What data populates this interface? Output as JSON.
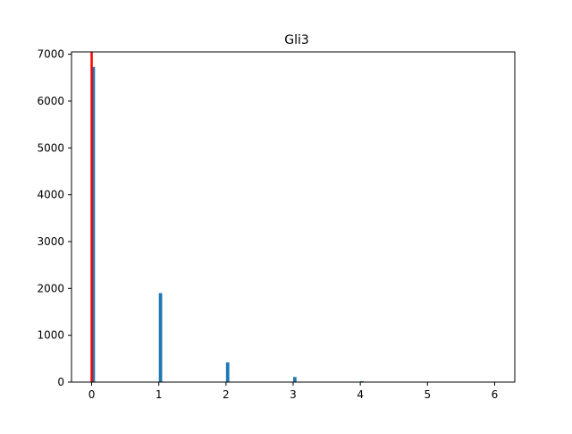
{
  "chart_data": {
    "type": "bar",
    "title": "Gli3",
    "xlabel": "",
    "ylabel": "",
    "xlim": [
      -0.3,
      6.3
    ],
    "ylim": [
      0,
      7050
    ],
    "x_ticks": [
      0,
      1,
      2,
      3,
      4,
      5,
      6
    ],
    "y_ticks": [
      0,
      1000,
      2000,
      3000,
      4000,
      5000,
      6000,
      7000
    ],
    "grid": false,
    "legend": "none",
    "bar_color": "#1f77b4",
    "marker_color": "#ff0000",
    "bin_width": 0.05,
    "bins": [
      {
        "x": 0,
        "value": 6730
      },
      {
        "x": 1,
        "value": 1900
      },
      {
        "x": 2,
        "value": 420
      },
      {
        "x": 3,
        "value": 110
      },
      {
        "x": 4,
        "value": 20
      },
      {
        "x": 5,
        "value": 5
      },
      {
        "x": 6,
        "value": 2
      }
    ],
    "vertical_line": {
      "x": 0
    }
  }
}
